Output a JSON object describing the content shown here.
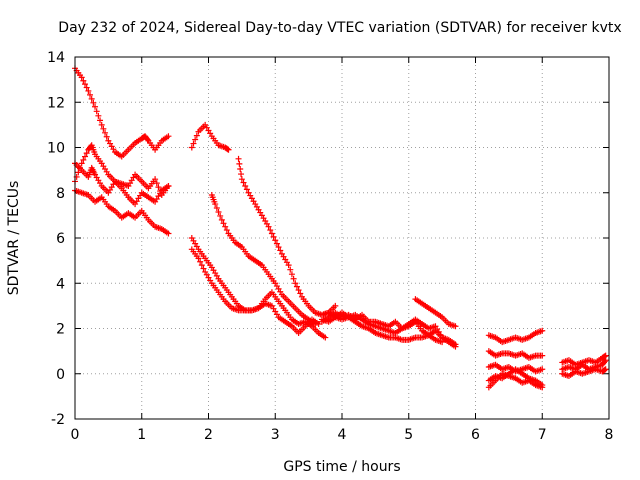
{
  "chart_data": {
    "type": "scatter",
    "title": "Day 232 of 2024, Sidereal Day-to-day VTEC variation (SDTVAR) for receiver kvtx",
    "xlabel": "GPS time / hours",
    "ylabel": "SDTVAR / TECUs",
    "xlim": [
      0,
      8
    ],
    "ylim": [
      -2,
      14
    ],
    "xticks": [
      0,
      1,
      2,
      3,
      4,
      5,
      6,
      7,
      8
    ],
    "yticks": [
      -2,
      0,
      2,
      4,
      6,
      8,
      10,
      12,
      14
    ],
    "grid": true,
    "marker": "+",
    "color": "#ff0000",
    "series": [
      {
        "name": "track-1",
        "points": [
          [
            0,
            13.5
          ],
          [
            0.1,
            13.1
          ],
          [
            0.2,
            12.5
          ],
          [
            0.3,
            11.8
          ],
          [
            0.4,
            11.0
          ],
          [
            0.5,
            10.3
          ],
          [
            0.6,
            9.8
          ],
          [
            0.7,
            9.6
          ],
          [
            0.8,
            9.9
          ],
          [
            0.9,
            10.2
          ],
          [
            1.0,
            10.4
          ],
          [
            1.05,
            10.5
          ],
          [
            1.1,
            10.3
          ],
          [
            1.2,
            9.9
          ],
          [
            1.3,
            10.3
          ],
          [
            1.4,
            10.5
          ]
        ]
      },
      {
        "name": "track-2",
        "points": [
          [
            0,
            8.5
          ],
          [
            0.1,
            9.3
          ],
          [
            0.2,
            9.9
          ],
          [
            0.25,
            10.1
          ],
          [
            0.3,
            9.7
          ],
          [
            0.4,
            9.3
          ],
          [
            0.5,
            8.8
          ],
          [
            0.6,
            8.5
          ],
          [
            0.7,
            8.4
          ],
          [
            0.8,
            8.3
          ],
          [
            0.9,
            8.8
          ],
          [
            1.0,
            8.5
          ],
          [
            1.1,
            8.2
          ],
          [
            1.2,
            8.6
          ],
          [
            1.3,
            7.9
          ],
          [
            1.4,
            8.3
          ]
        ]
      },
      {
        "name": "track-3",
        "points": [
          [
            0,
            9.3
          ],
          [
            0.1,
            9.0
          ],
          [
            0.2,
            8.7
          ],
          [
            0.25,
            9.1
          ],
          [
            0.3,
            8.8
          ],
          [
            0.4,
            8.3
          ],
          [
            0.5,
            8.0
          ],
          [
            0.6,
            8.5
          ],
          [
            0.7,
            8.2
          ],
          [
            0.8,
            7.8
          ],
          [
            0.9,
            7.5
          ],
          [
            1.0,
            8.0
          ],
          [
            1.1,
            7.8
          ],
          [
            1.2,
            7.6
          ],
          [
            1.3,
            8.1
          ],
          [
            1.4,
            8.3
          ]
        ]
      },
      {
        "name": "track-4",
        "points": [
          [
            0,
            8.1
          ],
          [
            0.1,
            8.0
          ],
          [
            0.2,
            7.9
          ],
          [
            0.3,
            7.6
          ],
          [
            0.4,
            7.8
          ],
          [
            0.5,
            7.4
          ],
          [
            0.6,
            7.2
          ],
          [
            0.7,
            6.9
          ],
          [
            0.8,
            7.1
          ],
          [
            0.9,
            6.9
          ],
          [
            1.0,
            7.2
          ],
          [
            1.1,
            6.8
          ],
          [
            1.2,
            6.5
          ],
          [
            1.3,
            6.4
          ],
          [
            1.4,
            6.2
          ]
        ]
      },
      {
        "name": "track-5",
        "points": [
          [
            1.75,
            10.0
          ],
          [
            1.85,
            10.7
          ],
          [
            1.95,
            11.0
          ],
          [
            2.05,
            10.5
          ],
          [
            2.15,
            10.1
          ],
          [
            2.25,
            10.0
          ],
          [
            2.3,
            9.9
          ]
        ]
      },
      {
        "name": "track-6",
        "points": [
          [
            2.45,
            9.5
          ],
          [
            2.5,
            8.6
          ],
          [
            2.6,
            8.0
          ],
          [
            2.7,
            7.5
          ],
          [
            2.8,
            7.0
          ],
          [
            2.9,
            6.5
          ],
          [
            3.0,
            5.9
          ],
          [
            3.1,
            5.3
          ],
          [
            3.2,
            4.8
          ],
          [
            3.3,
            4.0
          ],
          [
            3.4,
            3.4
          ],
          [
            3.5,
            3.0
          ],
          [
            3.6,
            2.7
          ],
          [
            3.7,
            2.6
          ],
          [
            3.8,
            2.7
          ],
          [
            3.9,
            3.0
          ]
        ]
      },
      {
        "name": "track-7",
        "points": [
          [
            2.05,
            7.9
          ],
          [
            2.1,
            7.5
          ],
          [
            2.2,
            6.8
          ],
          [
            2.3,
            6.2
          ],
          [
            2.4,
            5.8
          ],
          [
            2.5,
            5.6
          ],
          [
            2.6,
            5.2
          ],
          [
            2.7,
            5.0
          ],
          [
            2.8,
            4.8
          ],
          [
            2.9,
            4.4
          ],
          [
            3.0,
            4.0
          ],
          [
            3.1,
            3.5
          ],
          [
            3.2,
            3.2
          ],
          [
            3.3,
            2.9
          ],
          [
            3.4,
            2.6
          ],
          [
            3.5,
            2.4
          ],
          [
            3.6,
            2.2
          ]
        ]
      },
      {
        "name": "track-8",
        "points": [
          [
            1.75,
            6.0
          ],
          [
            1.85,
            5.5
          ],
          [
            1.95,
            5.1
          ],
          [
            2.05,
            4.7
          ],
          [
            2.15,
            4.2
          ],
          [
            2.25,
            3.8
          ],
          [
            2.35,
            3.4
          ],
          [
            2.45,
            3.0
          ],
          [
            2.55,
            2.8
          ],
          [
            2.65,
            2.8
          ],
          [
            2.75,
            2.9
          ],
          [
            2.85,
            3.1
          ],
          [
            2.95,
            3.0
          ],
          [
            3.05,
            2.5
          ],
          [
            3.15,
            2.3
          ],
          [
            3.25,
            2.1
          ],
          [
            3.35,
            1.8
          ],
          [
            3.45,
            2.1
          ],
          [
            3.55,
            2.4
          ],
          [
            3.65,
            2.2
          ]
        ]
      },
      {
        "name": "track-9",
        "points": [
          [
            1.75,
            5.5
          ],
          [
            1.85,
            5.1
          ],
          [
            1.95,
            4.5
          ],
          [
            2.05,
            4.0
          ],
          [
            2.15,
            3.6
          ],
          [
            2.25,
            3.2
          ],
          [
            2.35,
            2.9
          ],
          [
            2.45,
            2.8
          ],
          [
            2.55,
            2.8
          ],
          [
            2.65,
            2.8
          ],
          [
            2.75,
            2.9
          ],
          [
            2.85,
            3.3
          ],
          [
            2.95,
            3.6
          ],
          [
            3.05,
            3.2
          ],
          [
            3.15,
            2.8
          ],
          [
            3.25,
            2.4
          ],
          [
            3.35,
            2.2
          ],
          [
            3.45,
            2.3
          ],
          [
            3.55,
            2.1
          ],
          [
            3.65,
            1.8
          ],
          [
            3.75,
            1.6
          ]
        ]
      },
      {
        "name": "track-10",
        "points": [
          [
            3.7,
            2.3
          ],
          [
            3.8,
            2.5
          ],
          [
            3.9,
            2.7
          ],
          [
            4.0,
            2.5
          ],
          [
            4.1,
            2.6
          ],
          [
            4.2,
            2.4
          ],
          [
            4.3,
            2.6
          ],
          [
            4.4,
            2.3
          ],
          [
            4.5,
            2.3
          ],
          [
            4.6,
            2.2
          ],
          [
            4.7,
            2.1
          ],
          [
            4.8,
            2.3
          ],
          [
            4.9,
            2.0
          ],
          [
            5.0,
            2.1
          ],
          [
            5.1,
            2.3
          ],
          [
            5.2,
            1.9
          ],
          [
            5.3,
            1.7
          ],
          [
            5.4,
            1.9
          ],
          [
            5.5,
            1.6
          ],
          [
            5.6,
            1.4
          ],
          [
            5.7,
            1.2
          ]
        ]
      },
      {
        "name": "track-11",
        "points": [
          [
            3.7,
            2.6
          ],
          [
            3.8,
            2.7
          ],
          [
            3.9,
            2.5
          ],
          [
            4.0,
            2.4
          ],
          [
            4.1,
            2.5
          ],
          [
            4.2,
            2.6
          ],
          [
            4.3,
            2.4
          ],
          [
            4.4,
            2.2
          ],
          [
            4.5,
            2.1
          ],
          [
            4.6,
            2.0
          ],
          [
            4.7,
            1.9
          ],
          [
            4.8,
            1.8
          ],
          [
            4.9,
            2.0
          ],
          [
            5.0,
            2.2
          ],
          [
            5.1,
            2.4
          ],
          [
            5.2,
            2.2
          ],
          [
            5.3,
            2.0
          ],
          [
            5.4,
            2.1
          ],
          [
            5.5,
            1.6
          ],
          [
            5.6,
            1.5
          ],
          [
            5.7,
            1.3
          ]
        ]
      },
      {
        "name": "track-12",
        "points": [
          [
            3.7,
            2.4
          ],
          [
            3.8,
            2.3
          ],
          [
            3.9,
            2.5
          ],
          [
            4.0,
            2.7
          ],
          [
            4.1,
            2.5
          ],
          [
            4.2,
            2.3
          ],
          [
            4.3,
            2.1
          ],
          [
            4.4,
            2.0
          ],
          [
            4.5,
            1.8
          ],
          [
            4.6,
            1.7
          ],
          [
            4.7,
            1.6
          ],
          [
            4.8,
            1.6
          ],
          [
            4.9,
            1.5
          ],
          [
            5.0,
            1.5
          ],
          [
            5.1,
            1.6
          ],
          [
            5.2,
            1.6
          ],
          [
            5.3,
            1.7
          ],
          [
            5.4,
            1.5
          ],
          [
            5.5,
            1.4
          ]
        ]
      },
      {
        "name": "track-13",
        "points": [
          [
            5.1,
            3.3
          ],
          [
            5.2,
            3.1
          ],
          [
            5.3,
            2.9
          ],
          [
            5.4,
            2.7
          ],
          [
            5.5,
            2.5
          ],
          [
            5.6,
            2.2
          ],
          [
            5.7,
            2.1
          ]
        ]
      },
      {
        "name": "track-14",
        "points": [
          [
            6.2,
            1.7
          ],
          [
            6.3,
            1.6
          ],
          [
            6.4,
            1.4
          ],
          [
            6.5,
            1.5
          ],
          [
            6.6,
            1.6
          ],
          [
            6.7,
            1.5
          ],
          [
            6.8,
            1.6
          ],
          [
            6.9,
            1.8
          ],
          [
            7.0,
            1.9
          ]
        ]
      },
      {
        "name": "track-15",
        "points": [
          [
            6.2,
            1.0
          ],
          [
            6.3,
            0.8
          ],
          [
            6.4,
            0.9
          ],
          [
            6.5,
            0.9
          ],
          [
            6.6,
            0.8
          ],
          [
            6.7,
            0.9
          ],
          [
            6.8,
            0.7
          ],
          [
            6.9,
            0.8
          ],
          [
            7.0,
            0.8
          ]
        ]
      },
      {
        "name": "track-16",
        "points": [
          [
            6.2,
            0.3
          ],
          [
            6.3,
            0.4
          ],
          [
            6.4,
            0.2
          ],
          [
            6.5,
            0.3
          ],
          [
            6.6,
            0.1
          ],
          [
            6.7,
            0.2
          ],
          [
            6.8,
            0.3
          ],
          [
            6.9,
            0.1
          ],
          [
            7.0,
            0.2
          ]
        ]
      },
      {
        "name": "track-17",
        "points": [
          [
            6.2,
            -0.6
          ],
          [
            6.3,
            -0.3
          ],
          [
            6.4,
            0.0
          ],
          [
            6.5,
            -0.1
          ],
          [
            6.6,
            -0.2
          ],
          [
            6.7,
            -0.4
          ],
          [
            6.8,
            -0.3
          ],
          [
            6.9,
            -0.5
          ],
          [
            7.0,
            -0.6
          ]
        ]
      },
      {
        "name": "track-18",
        "points": [
          [
            6.2,
            -0.3
          ],
          [
            6.3,
            -0.1
          ],
          [
            6.4,
            -0.2
          ],
          [
            6.5,
            0.0
          ],
          [
            6.6,
            0.2
          ],
          [
            6.7,
            0.0
          ],
          [
            6.8,
            -0.2
          ],
          [
            6.9,
            -0.3
          ],
          [
            7.0,
            -0.5
          ]
        ]
      },
      {
        "name": "track-19",
        "points": [
          [
            7.3,
            0.5
          ],
          [
            7.4,
            0.6
          ],
          [
            7.5,
            0.4
          ],
          [
            7.6,
            0.5
          ],
          [
            7.7,
            0.6
          ],
          [
            7.8,
            0.5
          ],
          [
            7.9,
            0.7
          ],
          [
            7.95,
            0.8
          ]
        ]
      },
      {
        "name": "track-20",
        "points": [
          [
            7.3,
            0.2
          ],
          [
            7.4,
            0.3
          ],
          [
            7.5,
            0.2
          ],
          [
            7.6,
            0.4
          ],
          [
            7.7,
            0.2
          ],
          [
            7.8,
            0.3
          ],
          [
            7.9,
            0.4
          ],
          [
            7.95,
            0.6
          ]
        ]
      },
      {
        "name": "track-21",
        "points": [
          [
            7.3,
            0.0
          ],
          [
            7.4,
            -0.1
          ],
          [
            7.5,
            0.1
          ],
          [
            7.6,
            0.0
          ],
          [
            7.7,
            0.1
          ],
          [
            7.8,
            0.2
          ],
          [
            7.9,
            0.1
          ],
          [
            7.95,
            0.2
          ]
        ]
      }
    ]
  }
}
